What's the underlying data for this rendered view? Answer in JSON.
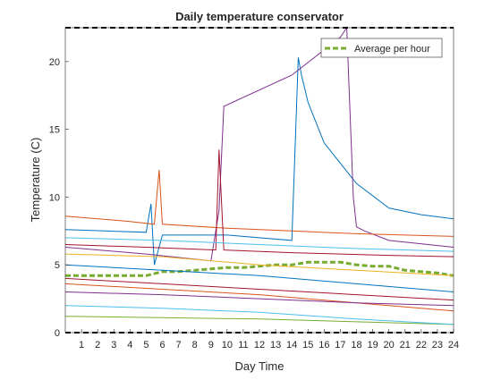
{
  "figure": {
    "title": "Daily temperature conservator",
    "xlabel": "Day Time",
    "ylabel": "Temperature (C)"
  },
  "legend": {
    "entries": [
      {
        "label": "Average per hour",
        "color": "#77ac30",
        "style": "dashed"
      }
    ],
    "placement": "top-right"
  },
  "colors": {
    "series_palette": [
      "#0072bd",
      "#d95319",
      "#edb120",
      "#7e2f8e",
      "#77ac30",
      "#4dbeee",
      "#a2142f"
    ],
    "average": "#77ac30",
    "limit_line": "#000000"
  },
  "chart_data": {
    "type": "line",
    "title": "Daily temperature conservator",
    "xlabel": "Day Time",
    "ylabel": "Temperature (C)",
    "xlim": [
      0,
      24
    ],
    "ylim": [
      0,
      22.5
    ],
    "xticks": [
      1,
      2,
      3,
      4,
      5,
      6,
      7,
      8,
      9,
      10,
      11,
      12,
      13,
      14,
      15,
      16,
      17,
      18,
      19,
      20,
      21,
      22,
      23,
      24
    ],
    "yticks": [
      0,
      5,
      10,
      15,
      20
    ],
    "grid": false,
    "legend_position": "top-right",
    "reference_lines": [
      {
        "y": 22.5,
        "style": "dashed",
        "color": "#000000"
      },
      {
        "y": 0,
        "style": "dashed",
        "color": "#000000"
      }
    ],
    "series": [
      {
        "name": "Average per hour",
        "color": "#77ac30",
        "style": "dashed",
        "x": [
          0,
          1,
          2,
          3,
          4,
          5,
          6,
          7,
          8,
          9,
          10,
          11,
          12,
          13,
          14,
          15,
          16,
          17,
          18,
          19,
          20,
          21,
          22,
          23,
          24
        ],
        "y": [
          4.2,
          4.2,
          4.2,
          4.2,
          4.2,
          4.2,
          4.5,
          4.5,
          4.6,
          4.7,
          4.8,
          4.8,
          4.9,
          5.0,
          5.0,
          5.2,
          5.2,
          5.2,
          5.0,
          4.9,
          4.9,
          4.6,
          4.5,
          4.4,
          4.2
        ]
      },
      {
        "color": "#0072bd",
        "x": [
          0,
          5,
          5.3,
          5.5,
          6,
          10,
          14,
          14.4,
          14.6,
          15,
          16,
          18,
          20,
          22,
          24
        ],
        "y": [
          7.6,
          7.4,
          9.5,
          5.0,
          7.2,
          7.2,
          6.8,
          20.3,
          19.0,
          17.0,
          14.0,
          11.0,
          9.2,
          8.7,
          8.4
        ]
      },
      {
        "color": "#7e2f8e",
        "x": [
          0,
          5,
          9,
          9.5,
          9.8,
          14,
          17,
          17.4,
          17.8,
          18,
          18.5,
          20,
          24
        ],
        "y": [
          6.3,
          5.8,
          5.3,
          9.0,
          16.7,
          19.0,
          21.8,
          22.5,
          10.0,
          7.8,
          7.5,
          6.8,
          6.3
        ]
      },
      {
        "color": "#d95319",
        "x": [
          0,
          4,
          5.5,
          5.8,
          6,
          10,
          14,
          18,
          24
        ],
        "y": [
          8.6,
          8.2,
          8.0,
          12.0,
          8.0,
          7.7,
          7.5,
          7.3,
          7.1
        ]
      },
      {
        "color": "#a2142f",
        "x": [
          0,
          5,
          9.3,
          9.5,
          9.8,
          14,
          20,
          24
        ],
        "y": [
          6.5,
          6.3,
          6.1,
          13.5,
          6.1,
          5.9,
          5.7,
          5.6
        ]
      },
      {
        "color": "#edb120",
        "x": [
          0,
          6,
          12,
          18,
          24
        ],
        "y": [
          5.8,
          5.6,
          5.0,
          4.6,
          4.2
        ]
      },
      {
        "color": "#4dbeee",
        "x": [
          0,
          6,
          12,
          18,
          24
        ],
        "y": [
          7.0,
          6.8,
          6.5,
          6.2,
          6.0
        ]
      },
      {
        "color": "#0072bd",
        "x": [
          0,
          6,
          12,
          18,
          24
        ],
        "y": [
          5.0,
          4.6,
          4.2,
          3.6,
          3.0
        ]
      },
      {
        "color": "#d95319",
        "x": [
          0,
          6,
          12,
          18,
          24
        ],
        "y": [
          3.6,
          3.2,
          2.8,
          2.2,
          1.6
        ]
      },
      {
        "color": "#77ac30",
        "x": [
          0,
          6,
          12,
          18,
          24
        ],
        "y": [
          1.2,
          1.1,
          1.0,
          0.8,
          0.6
        ]
      },
      {
        "color": "#7e2f8e",
        "x": [
          0,
          6,
          12,
          18,
          24
        ],
        "y": [
          3.0,
          2.8,
          2.5,
          2.2,
          2.0
        ]
      },
      {
        "color": "#4dbeee",
        "x": [
          0,
          6,
          12,
          18,
          24
        ],
        "y": [
          2.0,
          1.8,
          1.5,
          1.0,
          0.6
        ]
      },
      {
        "color": "#a2142f",
        "x": [
          0,
          6,
          12,
          18,
          24
        ],
        "y": [
          4.0,
          3.6,
          3.2,
          2.8,
          2.4
        ]
      }
    ]
  }
}
